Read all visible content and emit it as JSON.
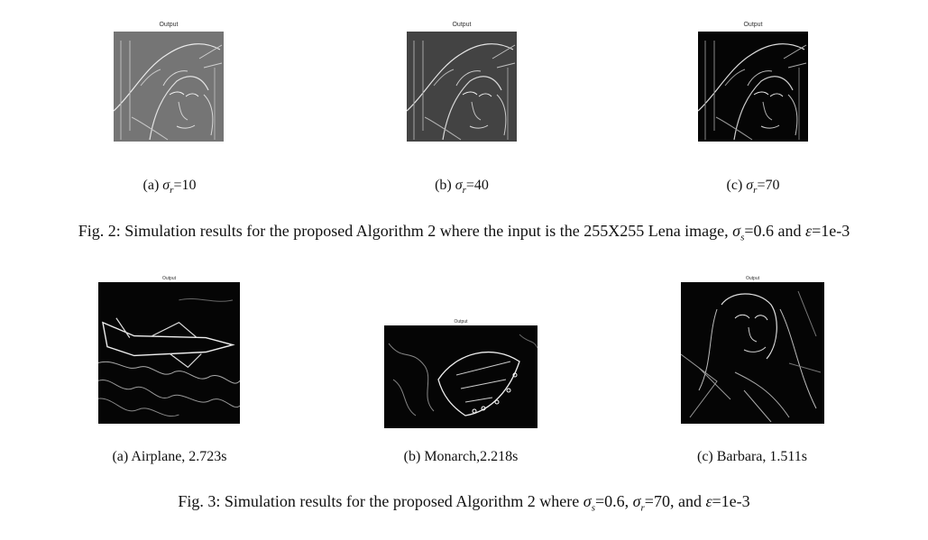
{
  "output_label": "Output",
  "figure2": {
    "panels": [
      {
        "prefix": "(a) ",
        "sym": "σ",
        "sub": "r",
        "text": "=10"
      },
      {
        "prefix": "(b) ",
        "sym": "σ",
        "sub": "r",
        "text": "=40"
      },
      {
        "prefix": "(c) ",
        "sym": "σ",
        "sub": "r",
        "text": "=70"
      }
    ],
    "caption": {
      "part1": "Fig. 2: Simulation results for the proposed Algorithm 2 where the input is the 255X255 Lena image, ",
      "sigma_sym": "σ",
      "sigma_sub": "s",
      "sigma_val": "=0.6 and ",
      "eps_sym": "ε",
      "eps_val": "=1e-3"
    }
  },
  "figure3": {
    "panels": [
      {
        "caption": "(a) Airplane, 2.723s"
      },
      {
        "caption": "(b) Monarch,2.218s"
      },
      {
        "caption": "(c) Barbara, 1.511s"
      }
    ],
    "caption": {
      "part1": "Fig. 3: Simulation results for the proposed Algorithm 2 where ",
      "sigma_s_sym": "σ",
      "sigma_s_sub": "s",
      "sigma_s_val": "=0.6, ",
      "sigma_r_sym": "σ",
      "sigma_r_sub": "r",
      "sigma_r_val": "=70, and ",
      "eps_sym": "ε",
      "eps_val": "=1e-3"
    }
  }
}
